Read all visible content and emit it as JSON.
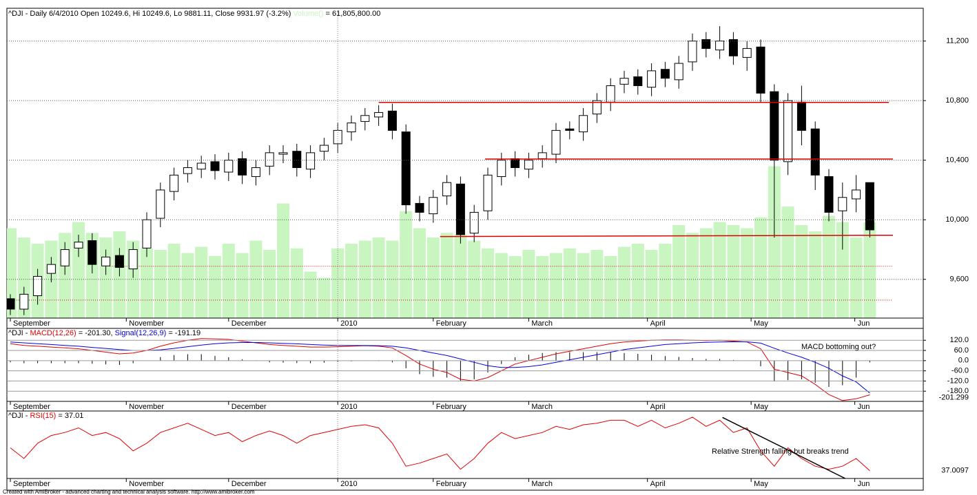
{
  "chart_data": [
    {
      "type": "candlestick",
      "title": "^DJI - Daily 6/4/2010 Open 10249.6, Hi 10249.6, Lo 9881.11, Close 9931.97 (-3.2%) ",
      "title_value": " = 61,805,800.00",
      "open": [
        9470,
        9400,
        9490,
        9640,
        9690,
        9810,
        9860,
        9690,
        9760,
        9670,
        9810,
        10010,
        10190,
        10310,
        10340,
        10390,
        10320,
        10410,
        10290,
        10360,
        10440,
        10460,
        10340,
        10460,
        10510,
        10590,
        10660,
        10690,
        10730,
        10590,
        10110,
        10040,
        10160,
        10240,
        9910,
        10060,
        10290,
        10410,
        10340,
        10410,
        10440,
        10610,
        10590,
        10710,
        10790,
        10910,
        10960,
        10890,
        11010,
        10940,
        11060,
        11210,
        11140,
        11210,
        11090,
        11160,
        10860,
        10390,
        10790,
        10610,
        10290,
        10060,
        10140,
        10249.6
      ],
      "high": [
        9500,
        9550,
        9670,
        9750,
        9850,
        9900,
        9910,
        9800,
        9810,
        9850,
        10050,
        10250,
        10350,
        10400,
        10430,
        10440,
        10450,
        10460,
        10400,
        10500,
        10500,
        10510,
        10500,
        10550,
        10650,
        10700,
        10750,
        10770,
        10780,
        10640,
        10160,
        10200,
        10300,
        10290,
        10100,
        10350,
        10450,
        10460,
        10450,
        10500,
        10650,
        10660,
        10750,
        10850,
        10950,
        11000,
        11010,
        11050,
        11060,
        11100,
        11250,
        11260,
        11300,
        11260,
        11200,
        11210,
        10910,
        10850,
        10900,
        10660,
        10340,
        10250,
        10300,
        10249.6
      ],
      "low": [
        9360,
        9360,
        9430,
        9580,
        9630,
        9750,
        9640,
        9630,
        9620,
        9610,
        9750,
        9950,
        10130,
        10250,
        10280,
        10270,
        10260,
        10240,
        10230,
        10300,
        10380,
        10290,
        10280,
        10400,
        10450,
        10530,
        10600,
        10630,
        10540,
        10040,
        9990,
        9980,
        10100,
        9840,
        9850,
        10000,
        10230,
        10290,
        10280,
        10350,
        10380,
        10540,
        10530,
        10650,
        10730,
        10850,
        10840,
        10830,
        10890,
        10880,
        11000,
        11090,
        11080,
        11040,
        11000,
        10790,
        9880,
        10300,
        10500,
        10200,
        9990,
        9800,
        10050,
        9881.11
      ],
      "close": [
        9400,
        9500,
        9620,
        9700,
        9800,
        9850,
        9700,
        9750,
        9680,
        9800,
        10000,
        10200,
        10300,
        10350,
        10380,
        10330,
        10400,
        10300,
        10350,
        10450,
        10450,
        10350,
        10450,
        10500,
        10600,
        10650,
        10700,
        10720,
        10600,
        10100,
        10050,
        10150,
        10250,
        9900,
        10050,
        10300,
        10400,
        10350,
        10400,
        10450,
        10600,
        10600,
        10700,
        10800,
        10900,
        10950,
        10900,
        11000,
        10950,
        11050,
        11200,
        11150,
        11200,
        11100,
        11150,
        10850,
        10400,
        10800,
        10600,
        10300,
        10050,
        10150,
        10200,
        9931.97
      ],
      "ylim": [
        9340,
        11420
      ],
      "yticks": [
        {
          "value": 9600,
          "label": "9,600"
        },
        {
          "value": 10000,
          "label": "10,000"
        },
        {
          "value": 10400,
          "label": "10,400"
        },
        {
          "value": 10800,
          "label": "10,800"
        },
        {
          "value": 11200,
          "label": "11,200"
        }
      ],
      "grid": true,
      "series": [
        {
          "name": "Volume()",
          "color": "#c8f5c0",
          "axis": "y2",
          "values": [
            58000000,
            52000000,
            48000000,
            50000000,
            55000000,
            62000000,
            55000000,
            52000000,
            56000000,
            50000000,
            45000000,
            44000000,
            48000000,
            42000000,
            46000000,
            40000000,
            48000000,
            42000000,
            50000000,
            44000000,
            74000000,
            45000000,
            30000000,
            26000000,
            45000000,
            48000000,
            50000000,
            52000000,
            50000000,
            69000000,
            58000000,
            52000000,
            55000000,
            54000000,
            50000000,
            45000000,
            42000000,
            40000000,
            44000000,
            40000000,
            42000000,
            45000000,
            42000000,
            44000000,
            40000000,
            46000000,
            48000000,
            44000000,
            48000000,
            60000000,
            55000000,
            58000000,
            62000000,
            60000000,
            58000000,
            65000000,
            98000000,
            72000000,
            60000000,
            56000000,
            66000000,
            62000000,
            52000000,
            61805800
          ]
        }
      ],
      "y2lim": [
        0,
        200000000
      ],
      "last_label": {
        "value": 61805800,
        "label": "61,805,800"
      },
      "levels": [
        {
          "x": [
            27,
            64.4
          ],
          "y": [
            10788,
            10788
          ],
          "color": "#e00000"
        },
        {
          "x": [
            34.8,
            64.7
          ],
          "y": [
            10408,
            10408
          ],
          "color": "#e00000"
        },
        {
          "x": [
            31.5,
            64.7
          ],
          "y": [
            9887,
            9896
          ],
          "color": "#e00000"
        }
      ],
      "dotted_levels": [
        {
          "x": [
            7.3,
            64.7
          ],
          "y": [
            9688,
            9688
          ],
          "color": "#e00000"
        },
        {
          "x": [
            0,
            64.7
          ],
          "y": [
            9461,
            9461
          ],
          "color": "#e00000"
        }
      ],
      "xticks": [
        {
          "value": 0,
          "label": "September"
        },
        {
          "value": 8.5,
          "label": "November"
        },
        {
          "value": 16,
          "label": "December"
        },
        {
          "value": 24,
          "label": "2010"
        },
        {
          "value": 31,
          "label": "February"
        },
        {
          "value": 38,
          "label": "March"
        },
        {
          "value": 46.7,
          "label": "April"
        },
        {
          "value": 54.3,
          "label": "May"
        },
        {
          "value": 61.9,
          "label": "Jun"
        }
      ]
    },
    {
      "type": "macd",
      "title": "^DJI - ",
      "series_readouts": [
        " = -201.30, ",
        " = -191.19"
      ],
      "series": [
        {
          "name": "MACD(12,26)",
          "color": "#e00000",
          "values": [
            100,
            90,
            85,
            80,
            75,
            70,
            60,
            50,
            40,
            45,
            60,
            85,
            105,
            120,
            130,
            128,
            125,
            115,
            105,
            95,
            90,
            85,
            80,
            80,
            82,
            85,
            88,
            85,
            75,
            30,
            -20,
            -50,
            -70,
            -110,
            -120,
            -100,
            -60,
            -20,
            0,
            20,
            40,
            55,
            70,
            85,
            100,
            110,
            115,
            120,
            122,
            122,
            120,
            118,
            120,
            115,
            110,
            70,
            -50,
            -70,
            -90,
            -140,
            -200,
            -235,
            -225,
            -201.299
          ]
        },
        {
          "name": "Signal(12,26,9)",
          "color": "#0000e0",
          "values": [
            110,
            105,
            100,
            95,
            90,
            85,
            78,
            72,
            65,
            60,
            60,
            64,
            72,
            82,
            92,
            100,
            105,
            107,
            107,
            105,
            102,
            99,
            95,
            92,
            90,
            89,
            89,
            88,
            85,
            75,
            60,
            45,
            30,
            10,
            -10,
            -30,
            -40,
            -40,
            -35,
            -25,
            -10,
            5,
            20,
            35,
            50,
            65,
            75,
            85,
            95,
            100,
            105,
            108,
            110,
            111,
            111,
            103,
            73,
            45,
            20,
            -10,
            -45,
            -90,
            -125,
            -191.19
          ]
        }
      ],
      "histogram": {
        "color": "#000000",
        "values": [
          -10,
          -15,
          -15,
          -15,
          -15,
          -15,
          -18,
          -22,
          -25,
          -15,
          0,
          21,
          33,
          38,
          38,
          28,
          20,
          8,
          -2,
          -10,
          -12,
          -14,
          -15,
          -12,
          -8,
          -4,
          -1,
          -3,
          -10,
          -45,
          -80,
          -95,
          -100,
          -120,
          -110,
          -70,
          -20,
          20,
          35,
          45,
          50,
          50,
          50,
          50,
          50,
          45,
          40,
          35,
          27,
          22,
          15,
          10,
          10,
          4,
          -1,
          -33,
          -123,
          -115,
          -110,
          -130,
          -155,
          -145,
          -100,
          -10.109
        ]
      },
      "ylim": [
        -240,
        190
      ],
      "yticks": [
        {
          "value": 120,
          "label": "120.0"
        },
        {
          "value": 60,
          "label": "60.0"
        },
        {
          "value": 0,
          "label": "0.0"
        },
        {
          "value": -60,
          "label": "-60.0"
        },
        {
          "value": -120,
          "label": "-120.0"
        },
        {
          "value": -180,
          "label": "-180.0"
        }
      ],
      "last_label": {
        "value": -201.299,
        "label": "-201.299"
      },
      "annotation": "MACD bottoming out?"
    },
    {
      "type": "rsi",
      "title": "^DJI - ",
      "series_readouts": [
        " = 37.01"
      ],
      "series": [
        {
          "name": "RSI(15)",
          "color": "#e00000",
          "values": [
            52,
            45,
            55,
            60,
            62,
            65,
            60,
            62,
            58,
            50,
            55,
            62,
            65,
            68,
            64,
            60,
            62,
            56,
            60,
            63,
            60,
            55,
            60,
            62,
            64,
            66,
            67,
            65,
            55,
            40,
            42,
            45,
            48,
            38,
            45,
            55,
            62,
            58,
            60,
            62,
            66,
            64,
            67,
            68,
            70,
            70,
            66,
            70,
            65,
            68,
            72,
            66,
            70,
            62,
            65,
            50,
            40,
            52,
            45,
            40,
            38,
            40,
            45,
            37.0097
          ]
        }
      ],
      "ylim": [
        32,
        76
      ],
      "last_label": {
        "value": 37.0097,
        "label": "37.0097"
      },
      "trend_line": {
        "x": [
          52.2,
          61.2
        ],
        "y": [
          71.8,
          32
        ],
        "color": "#000000"
      },
      "annotation": "Relative Strength falling but breaks trend"
    }
  ],
  "footer": "Created with AmiBroker - advanced charting and technical analysis software. http://www.amibroker.com"
}
